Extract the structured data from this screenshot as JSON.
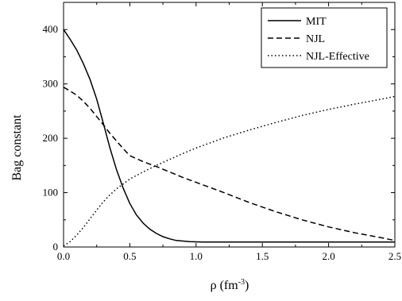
{
  "chart_data": {
    "type": "line",
    "title": "",
    "xlabel": "ρ (fm",
    "xlabel_sup": "-3",
    "xlabel_close": ")",
    "ylabel": "Bag constant",
    "xlim": [
      0.0,
      2.5
    ],
    "ylim": [
      0,
      450
    ],
    "xticks": [
      0.0,
      0.5,
      1.0,
      1.5,
      2.0,
      2.5
    ],
    "xtick_labels": [
      "0.0",
      "0.5",
      "1.0",
      "1.5",
      "2.0",
      "2.5"
    ],
    "yticks": [
      0,
      100,
      200,
      300,
      400
    ],
    "ytick_labels": [
      "0",
      "100",
      "200",
      "300",
      "400"
    ],
    "grid": false,
    "legend_position": "top-right",
    "series": [
      {
        "name": "MIT",
        "dash": "solid",
        "x": [
          0.0,
          0.05,
          0.1,
          0.15,
          0.2,
          0.25,
          0.3,
          0.35,
          0.4,
          0.45,
          0.5,
          0.55,
          0.6,
          0.65,
          0.7,
          0.75,
          0.8,
          0.85,
          0.9,
          0.95,
          1.0,
          1.05,
          1.1,
          1.2,
          1.4,
          1.6,
          1.8,
          2.0,
          2.2,
          2.5
        ],
        "y": [
          400,
          382,
          362,
          337,
          308,
          272,
          228,
          182,
          142,
          108,
          80,
          59,
          44,
          33,
          25,
          19,
          15,
          12,
          11,
          10,
          9.5,
          9,
          9,
          9,
          9,
          9,
          9,
          9,
          9,
          9
        ]
      },
      {
        "name": "NJL",
        "dash": "dashed",
        "x": [
          0.0,
          0.05,
          0.1,
          0.15,
          0.2,
          0.25,
          0.3,
          0.35,
          0.4,
          0.45,
          0.5,
          0.6,
          0.7,
          0.8,
          0.9,
          1.0,
          1.1,
          1.2,
          1.4,
          1.6,
          1.8,
          2.0,
          2.2,
          2.4,
          2.5
        ],
        "y": [
          294,
          287,
          279,
          268,
          255,
          240,
          225,
          209,
          195,
          181,
          168,
          157,
          148,
          138,
          128,
          119,
          110,
          101,
          82,
          65,
          50,
          37,
          26,
          17,
          12
        ]
      },
      {
        "name": "NJL-Effective",
        "dash": "dotted",
        "x": [
          0.0,
          0.05,
          0.1,
          0.15,
          0.2,
          0.25,
          0.3,
          0.35,
          0.4,
          0.45,
          0.5,
          0.6,
          0.7,
          0.8,
          0.9,
          1.0,
          1.1,
          1.2,
          1.4,
          1.6,
          1.8,
          2.0,
          2.2,
          2.4,
          2.5
        ],
        "y": [
          2,
          10,
          22,
          36,
          52,
          68,
          83,
          96,
          107,
          116,
          125,
          138,
          150,
          161,
          172,
          182,
          191,
          200,
          215,
          229,
          242,
          253,
          263,
          272,
          277
        ]
      }
    ]
  }
}
